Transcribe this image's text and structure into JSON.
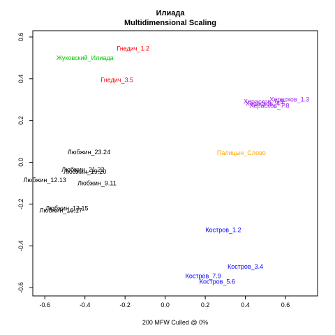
{
  "chart_data": {
    "type": "scatter",
    "title": "Илиада",
    "subtitle": "Multidimensional Scaling",
    "xlabel": "200 MFW  Culled @ 0%",
    "ylabel": "",
    "xlim": [
      -0.66,
      0.76
    ],
    "ylim": [
      -0.64,
      0.63
    ],
    "x_ticks": [
      -0.6,
      -0.4,
      -0.2,
      0.0,
      0.2,
      0.4,
      0.6
    ],
    "y_ticks": [
      -0.6,
      -0.4,
      -0.2,
      0.0,
      0.2,
      0.4,
      0.6
    ],
    "x_tick_labels": [
      "-0.6",
      "-0.4",
      "-0.2",
      "0.0",
      "0.2",
      "0.4",
      "0.6"
    ],
    "y_tick_labels": [
      "-0.6",
      "-0.4",
      "-0.2",
      "0.0",
      "0.2",
      "0.4",
      "0.6"
    ],
    "grid": false,
    "points": [
      {
        "label": "Гнедич_1.2",
        "x": -0.16,
        "y": 0.545,
        "color": "#ff0000"
      },
      {
        "label": "Жуковский_Илиада",
        "x": -0.4,
        "y": 0.5,
        "color": "#00cc00"
      },
      {
        "label": "Гнедич_3.5",
        "x": -0.24,
        "y": 0.395,
        "color": "#ff0000"
      },
      {
        "label": "Херасков_1.3",
        "x": 0.62,
        "y": 0.3,
        "color": "#a020f0"
      },
      {
        "label": "Херасков_6.9",
        "x": 0.49,
        "y": 0.29,
        "color": "#a020f0"
      },
      {
        "label": "Херасков_4.5",
        "x": 0.5,
        "y": 0.28,
        "color": "#a020f0"
      },
      {
        "label": "Херасков_7.8",
        "x": 0.52,
        "y": 0.27,
        "color": "#a020f0"
      },
      {
        "label": "Палицын_Слово",
        "x": 0.38,
        "y": 0.045,
        "color": "#ffa500"
      },
      {
        "label": "Любжин_23.24",
        "x": -0.38,
        "y": 0.048,
        "color": "#000000"
      },
      {
        "label": "Любжин_21.22",
        "x": -0.41,
        "y": -0.035,
        "color": "#000000"
      },
      {
        "label": "Любжин_19.20",
        "x": -0.4,
        "y": -0.045,
        "color": "#000000"
      },
      {
        "label": "Любжин_12.13",
        "x": -0.6,
        "y": -0.085,
        "color": "#000000"
      },
      {
        "label": "Любжин_9.11",
        "x": -0.34,
        "y": -0.1,
        "color": "#000000"
      },
      {
        "label": "Любжин_13.15",
        "x": -0.49,
        "y": -0.22,
        "color": "#000000"
      },
      {
        "label": "Любжин_16.17",
        "x": -0.52,
        "y": -0.23,
        "color": "#000000"
      },
      {
        "label": "Костров_1.2",
        "x": 0.29,
        "y": -0.325,
        "color": "#0000ff"
      },
      {
        "label": "Костров_3.4",
        "x": 0.4,
        "y": -0.5,
        "color": "#0000ff"
      },
      {
        "label": "Костров_7.9",
        "x": 0.19,
        "y": -0.545,
        "color": "#0000ff"
      },
      {
        "label": "Костров_5.6",
        "x": 0.26,
        "y": -0.572,
        "color": "#0000ff"
      }
    ]
  }
}
